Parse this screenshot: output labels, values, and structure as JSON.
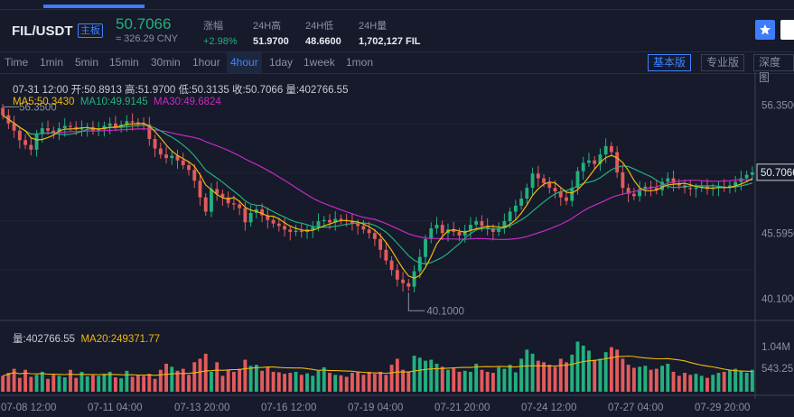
{
  "header": {
    "pair": "FIL/USDT",
    "board_tag": "主板",
    "price": "50.7066",
    "price_cny": "≈ 326.29 CNY",
    "stats": [
      {
        "label": "涨幅",
        "value": "+2.98%"
      },
      {
        "label": "24H高",
        "value": "51.9700"
      },
      {
        "label": "24H低",
        "value": "48.6600"
      },
      {
        "label": "24H量",
        "value": "1,702,127 FIL"
      }
    ]
  },
  "toolbar": {
    "timeframes": [
      "Time",
      "1min",
      "5min",
      "15min",
      "30min",
      "1hour",
      "4hour",
      "1day",
      "1week",
      "1mon"
    ],
    "active_timeframe": "4hour",
    "views": [
      "基本版",
      "专业版",
      "深度图"
    ],
    "active_view": "基本版"
  },
  "info": {
    "line": "07-31 12:00   开:50.8913  高:51.9700  低:50.3135  收:50.7066  量:402766.55",
    "ma5": "MA5:50.3430",
    "ma10": "MA10:49.9145",
    "ma30": "MA30:49.6824",
    "vol": "量:402766.55",
    "ma20": "MA20:249371.77"
  },
  "colors": {
    "up": "#22b07e",
    "down": "#e25b5b",
    "ma5": "#f0b90b",
    "ma10": "#22b07e",
    "ma30": "#c62ac4",
    "accent": "#3d7bff"
  },
  "chart_data": {
    "type": "candlestick",
    "price_axis_ticks": [
      "56.3500",
      "50.7066",
      "45.5950",
      "40.1000"
    ],
    "volume_axis_ticks": [
      "1.04M",
      "543.25K"
    ],
    "x_tick_labels": [
      "07-08 12:00",
      "07-11 04:00",
      "07-13 20:00",
      "07-16 12:00",
      "07-19 04:00",
      "07-21 20:00",
      "07-24 12:00",
      "07-27 04:00",
      "07-29 20:00"
    ],
    "annotations": {
      "high": "56.3500",
      "low": "40.1000"
    },
    "current_price": "50.7066",
    "ylim": [
      38.5,
      58.8
    ],
    "close": [
      55.5,
      54.8,
      54.2,
      53.4,
      53.0,
      52.6,
      53.9,
      54.4,
      54.2,
      54.0,
      54.4,
      54.6,
      54.5,
      54.3,
      54.4,
      54.5,
      54.2,
      54.3,
      54.6,
      54.8,
      54.5,
      54.7,
      55.0,
      54.9,
      54.8,
      54.7,
      53.5,
      52.7,
      52.2,
      51.9,
      52.1,
      51.7,
      51.3,
      50.9,
      50.0,
      48.6,
      47.4,
      49.3,
      48.9,
      48.6,
      48.1,
      48.0,
      47.7,
      46.5,
      47.3,
      47.6,
      47.1,
      46.7,
      46.4,
      46.2,
      45.9,
      45.7,
      45.8,
      45.7,
      45.9,
      46.1,
      46.6,
      46.7,
      46.5,
      46.8,
      46.7,
      46.6,
      46.4,
      46.2,
      45.9,
      45.6,
      45.1,
      44.2,
      43.3,
      42.5,
      41.7,
      41.4,
      41.1,
      42.4,
      43.6,
      45.1,
      46.0,
      46.3,
      45.6,
      45.9,
      45.7,
      45.4,
      45.8,
      46.3,
      46.6,
      46.2,
      46.0,
      45.7,
      46.0,
      46.6,
      47.4,
      47.9,
      48.5,
      49.4,
      50.6,
      50.2,
      49.8,
      49.4,
      49.1,
      48.6,
      48.3,
      49.4,
      50.8,
      51.5,
      51.7,
      51.4,
      52.2,
      52.9,
      52.4,
      50.7,
      49.4,
      48.9,
      48.7,
      49.3,
      49.5,
      49.4,
      49.2,
      49.9,
      50.2,
      49.8,
      49.6,
      49.4,
      49.3,
      49.4,
      49.5,
      49.3,
      49.4,
      49.5,
      49.4,
      49.6,
      49.9,
      50.2,
      50.5,
      50.7
    ],
    "volume": [
      0.28,
      0.34,
      0.42,
      0.24,
      0.4,
      0.26,
      0.3,
      0.36,
      0.22,
      0.3,
      0.28,
      0.25,
      0.4,
      0.24,
      0.36,
      0.27,
      0.29,
      0.28,
      0.32,
      0.36,
      0.25,
      0.23,
      0.38,
      0.26,
      0.3,
      0.28,
      0.32,
      0.22,
      0.4,
      0.52,
      0.46,
      0.38,
      0.42,
      0.3,
      0.55,
      0.62,
      0.72,
      0.36,
      0.55,
      0.28,
      0.4,
      0.36,
      0.42,
      0.6,
      0.48,
      0.5,
      0.38,
      0.45,
      0.36,
      0.35,
      0.32,
      0.34,
      0.36,
      0.3,
      0.33,
      0.28,
      0.38,
      0.45,
      0.34,
      0.3,
      0.29,
      0.26,
      0.34,
      0.36,
      0.3,
      0.36,
      0.32,
      0.36,
      0.3,
      0.5,
      0.62,
      0.4,
      0.36,
      0.68,
      0.64,
      0.58,
      0.6,
      0.52,
      0.46,
      0.4,
      0.44,
      0.36,
      0.38,
      0.36,
      0.52,
      0.4,
      0.36,
      0.34,
      0.45,
      0.42,
      0.5,
      0.35,
      0.62,
      0.8,
      0.72,
      0.58,
      0.55,
      0.5,
      0.46,
      0.62,
      0.55,
      0.7,
      0.96,
      0.88,
      0.78,
      0.6,
      0.62,
      0.75,
      0.85,
      0.8,
      0.62,
      0.5,
      0.44,
      0.46,
      0.48,
      0.4,
      0.42,
      0.48,
      0.52,
      0.36,
      0.28,
      0.34,
      0.3,
      0.32,
      0.28,
      0.24,
      0.3,
      0.34,
      0.36,
      0.4,
      0.42,
      0.38,
      0.34,
      0.4
    ]
  }
}
